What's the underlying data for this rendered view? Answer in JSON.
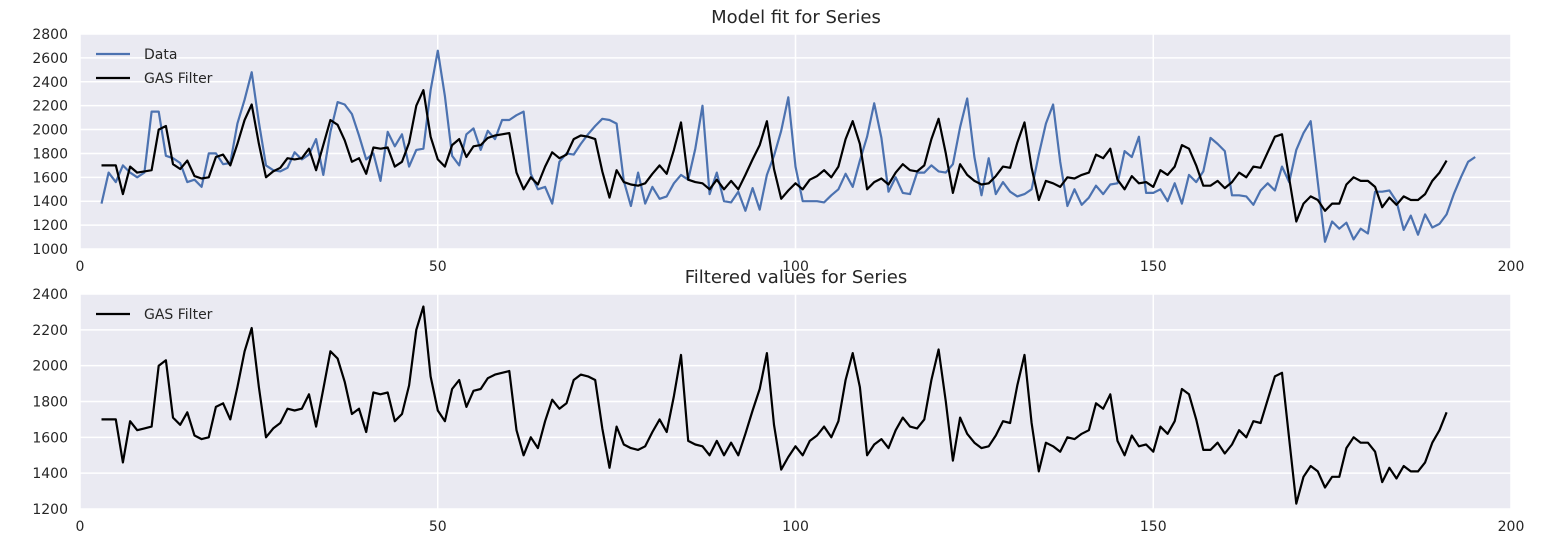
{
  "chart_data": [
    {
      "type": "line",
      "title": "Model fit for Series",
      "xlabel": "",
      "ylabel": "",
      "xlim": [
        0,
        200
      ],
      "ylim": [
        1000,
        2800
      ],
      "xticks": [
        0,
        50,
        100,
        150,
        200
      ],
      "yticks": [
        1000,
        1200,
        1400,
        1600,
        1800,
        2000,
        2200,
        2400,
        2600,
        2800
      ],
      "grid": true,
      "legend_position": "top-left",
      "series": [
        {
          "name": "Data",
          "color": "#4c72b0",
          "x_start": 3,
          "values": [
            1380,
            1640,
            1560,
            1700,
            1640,
            1600,
            1640,
            2150,
            2150,
            1780,
            1760,
            1720,
            1560,
            1580,
            1520,
            1800,
            1800,
            1710,
            1720,
            2050,
            2250,
            2480,
            2060,
            1700,
            1660,
            1650,
            1680,
            1810,
            1750,
            1790,
            1920,
            1620,
            1980,
            2230,
            2210,
            2130,
            1950,
            1750,
            1800,
            1570,
            1980,
            1860,
            1960,
            1690,
            1830,
            1840,
            2330,
            2660,
            2280,
            1780,
            1700,
            1960,
            2010,
            1830,
            1990,
            1920,
            2080,
            2080,
            2120,
            2150,
            1630,
            1500,
            1520,
            1380,
            1730,
            1800,
            1790,
            1880,
            1960,
            2030,
            2090,
            2080,
            2050,
            1570,
            1360,
            1640,
            1380,
            1520,
            1420,
            1440,
            1550,
            1620,
            1580,
            1840,
            2200,
            1460,
            1640,
            1400,
            1390,
            1480,
            1320,
            1510,
            1330,
            1620,
            1780,
            1990,
            2270,
            1690,
            1400,
            1400,
            1400,
            1390,
            1450,
            1500,
            1630,
            1520,
            1740,
            1940,
            2220,
            1930,
            1480,
            1600,
            1470,
            1460,
            1640,
            1640,
            1700,
            1650,
            1640,
            1710,
            2020,
            2260,
            1770,
            1450,
            1760,
            1460,
            1560,
            1480,
            1440,
            1460,
            1500,
            1790,
            2050,
            2210,
            1730,
            1360,
            1500,
            1370,
            1430,
            1530,
            1460,
            1540,
            1550,
            1820,
            1770,
            1940,
            1470,
            1470,
            1500,
            1400,
            1550,
            1380,
            1620,
            1560,
            1650,
            1930,
            1880,
            1820,
            1450,
            1450,
            1440,
            1370,
            1490,
            1550,
            1490,
            1690,
            1560,
            1830,
            1970,
            2070,
            1560,
            1060,
            1230,
            1170,
            1220,
            1080,
            1170,
            1130,
            1480,
            1480,
            1490,
            1400,
            1160,
            1280,
            1120,
            1290,
            1180,
            1210,
            1290,
            1460,
            1600,
            1730,
            1770
          ]
        },
        {
          "name": "GAS Filter",
          "color": "#000000",
          "x_start": 3,
          "values": [
            1700,
            1700,
            1700,
            1460,
            1690,
            1640,
            1650,
            1660,
            2000,
            2030,
            1710,
            1670,
            1740,
            1610,
            1590,
            1600,
            1770,
            1790,
            1700,
            1880,
            2080,
            2210,
            1880,
            1600,
            1650,
            1680,
            1760,
            1750,
            1760,
            1840,
            1660,
            1870,
            2080,
            2040,
            1910,
            1730,
            1760,
            1630,
            1850,
            1840,
            1850,
            1690,
            1730,
            1890,
            2200,
            2330,
            1940,
            1750,
            1690,
            1870,
            1920,
            1770,
            1860,
            1870,
            1930,
            1950,
            1960,
            1970,
            1640,
            1500,
            1600,
            1540,
            1690,
            1810,
            1760,
            1790,
            1920,
            1950,
            1940,
            1920,
            1650,
            1430,
            1660,
            1560,
            1540,
            1530,
            1550,
            1630,
            1700,
            1630,
            1830,
            2060,
            1580,
            1560,
            1550,
            1500,
            1580,
            1500,
            1570,
            1500,
            1620,
            1750,
            1870,
            2070,
            1670,
            1420,
            1490,
            1550,
            1500,
            1580,
            1610,
            1660,
            1600,
            1690,
            1920,
            2070,
            1880,
            1500,
            1560,
            1590,
            1540,
            1640,
            1710,
            1660,
            1650,
            1700,
            1920,
            2090,
            1800,
            1470,
            1710,
            1620,
            1570,
            1540,
            1550,
            1610,
            1690,
            1680,
            1890,
            2060,
            1680,
            1410,
            1570,
            1550,
            1520,
            1600,
            1590,
            1620,
            1640,
            1790,
            1760,
            1840,
            1580,
            1500,
            1610,
            1550,
            1560,
            1520,
            1660,
            1620,
            1690,
            1870,
            1840,
            1700,
            1530,
            1530,
            1570,
            1510,
            1560,
            1640,
            1600,
            1690,
            1680,
            1810,
            1940,
            1960,
            1590,
            1230,
            1380,
            1440,
            1410,
            1320,
            1380,
            1380,
            1540,
            1600,
            1570,
            1570,
            1520,
            1350,
            1430,
            1370,
            1440,
            1410,
            1410,
            1460,
            1570,
            1640,
            1740
          ]
        }
      ]
    },
    {
      "type": "line",
      "title": "Filtered values for Series",
      "xlabel": "",
      "ylabel": "",
      "xlim": [
        0,
        200
      ],
      "ylim": [
        1200,
        2400
      ],
      "xticks": [
        0,
        50,
        100,
        150,
        200
      ],
      "yticks": [
        1200,
        1400,
        1600,
        1800,
        2000,
        2200,
        2400
      ],
      "grid": true,
      "legend_position": "top-left",
      "series": [
        {
          "name": "GAS Filter",
          "color": "#000000",
          "x_start": 3,
          "values": [
            1700,
            1700,
            1700,
            1460,
            1690,
            1640,
            1650,
            1660,
            2000,
            2030,
            1710,
            1670,
            1740,
            1610,
            1590,
            1600,
            1770,
            1790,
            1700,
            1880,
            2080,
            2210,
            1880,
            1600,
            1650,
            1680,
            1760,
            1750,
            1760,
            1840,
            1660,
            1870,
            2080,
            2040,
            1910,
            1730,
            1760,
            1630,
            1850,
            1840,
            1850,
            1690,
            1730,
            1890,
            2200,
            2330,
            1940,
            1750,
            1690,
            1870,
            1920,
            1770,
            1860,
            1870,
            1930,
            1950,
            1960,
            1970,
            1640,
            1500,
            1600,
            1540,
            1690,
            1810,
            1760,
            1790,
            1920,
            1950,
            1940,
            1920,
            1650,
            1430,
            1660,
            1560,
            1540,
            1530,
            1550,
            1630,
            1700,
            1630,
            1830,
            2060,
            1580,
            1560,
            1550,
            1500,
            1580,
            1500,
            1570,
            1500,
            1620,
            1750,
            1870,
            2070,
            1670,
            1420,
            1490,
            1550,
            1500,
            1580,
            1610,
            1660,
            1600,
            1690,
            1920,
            2070,
            1880,
            1500,
            1560,
            1590,
            1540,
            1640,
            1710,
            1660,
            1650,
            1700,
            1920,
            2090,
            1800,
            1470,
            1710,
            1620,
            1570,
            1540,
            1550,
            1610,
            1690,
            1680,
            1890,
            2060,
            1680,
            1410,
            1570,
            1550,
            1520,
            1600,
            1590,
            1620,
            1640,
            1790,
            1760,
            1840,
            1580,
            1500,
            1610,
            1550,
            1560,
            1520,
            1660,
            1620,
            1690,
            1870,
            1840,
            1700,
            1530,
            1530,
            1570,
            1510,
            1560,
            1640,
            1600,
            1690,
            1680,
            1810,
            1940,
            1960,
            1590,
            1230,
            1380,
            1440,
            1410,
            1320,
            1380,
            1380,
            1540,
            1600,
            1570,
            1570,
            1520,
            1350,
            1430,
            1370,
            1440,
            1410,
            1410,
            1460,
            1570,
            1640,
            1740
          ]
        }
      ]
    }
  ]
}
